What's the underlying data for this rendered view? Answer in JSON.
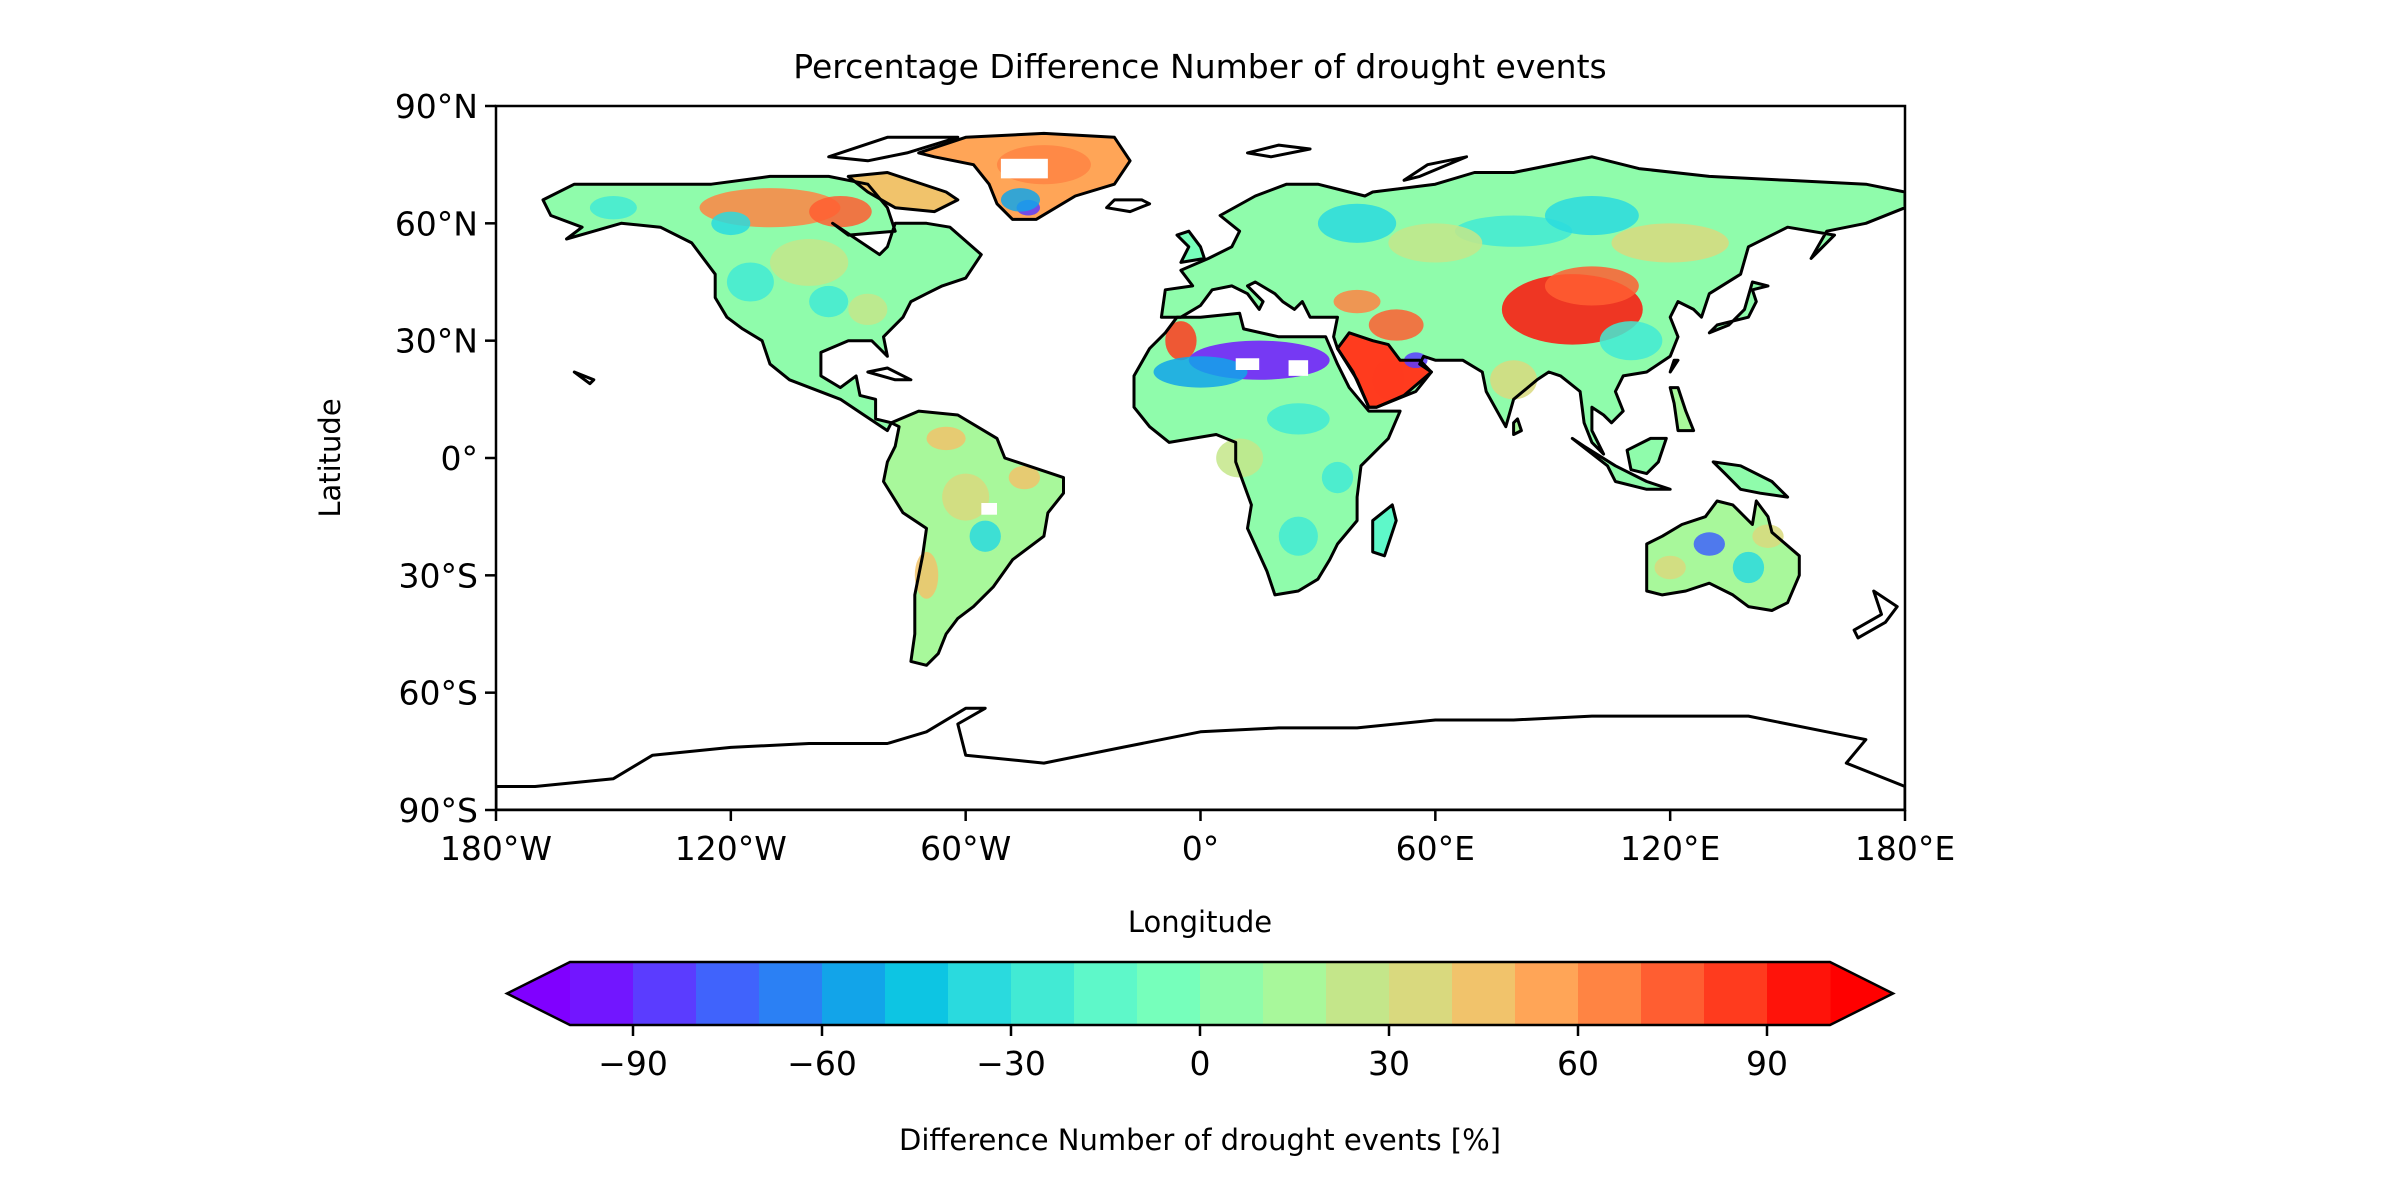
{
  "chart_data": {
    "type": "heatmap",
    "title": "Percentage Difference Number of drought events",
    "xlabel": "Longitude",
    "ylabel": "Latitude",
    "xlim": [
      -180,
      180
    ],
    "ylim": [
      -90,
      90
    ],
    "x_ticks": [
      {
        "value": -180,
        "label": "180°W"
      },
      {
        "value": -120,
        "label": "120°W"
      },
      {
        "value": -60,
        "label": "60°W"
      },
      {
        "value": 0,
        "label": "0°"
      },
      {
        "value": 60,
        "label": "60°E"
      },
      {
        "value": 120,
        "label": "120°E"
      },
      {
        "value": 180,
        "label": "180°E"
      }
    ],
    "y_ticks": [
      {
        "value": 90,
        "label": "90°N"
      },
      {
        "value": 60,
        "label": "60°N"
      },
      {
        "value": 30,
        "label": "30°N"
      },
      {
        "value": 0,
        "label": "0°"
      },
      {
        "value": -30,
        "label": "30°S"
      },
      {
        "value": -60,
        "label": "60°S"
      },
      {
        "value": -90,
        "label": "90°S"
      }
    ],
    "colorbar": {
      "label": "Difference Number of drought events [%]",
      "orientation": "horizontal",
      "extend": "both",
      "levels": [
        -100,
        -90,
        -80,
        -70,
        -60,
        -50,
        -40,
        -30,
        -20,
        -10,
        0,
        10,
        20,
        30,
        40,
        50,
        60,
        70,
        80,
        90,
        100
      ],
      "colors": [
        "#7216ff",
        "#5b3cff",
        "#4063fc",
        "#2b80f4",
        "#12a4e9",
        "#0dc5e3",
        "#2adade",
        "#42ead4",
        "#5ef8c9",
        "#76ffbb",
        "#8ffcab",
        "#a8f89b",
        "#c4e68a",
        "#d9d97e",
        "#f1c36b",
        "#ffa557",
        "#ff8443",
        "#ff5e31",
        "#ff3b1e",
        "#ff130a"
      ],
      "under_color": "#8000ff",
      "over_color": "#ff0000",
      "ticks": [
        {
          "value": -90,
          "label": "−90"
        },
        {
          "value": -60,
          "label": "−60"
        },
        {
          "value": -30,
          "label": "−30"
        },
        {
          "value": 0,
          "label": "0"
        },
        {
          "value": 30,
          "label": "30"
        },
        {
          "value": 60,
          "label": "60"
        },
        {
          "value": 90,
          "label": "90"
        }
      ]
    },
    "regions": [
      {
        "name": "North America",
        "typical_value": 5,
        "range": [
          -40,
          70
        ]
      },
      {
        "name": "Northern Canada",
        "value": 60
      },
      {
        "name": "Greenland",
        "value": 55
      },
      {
        "name": "South Greenland",
        "value": -90
      },
      {
        "name": "South America",
        "typical_value": 10,
        "range": [
          -50,
          60
        ]
      },
      {
        "name": "Europe and Russia",
        "typical_value": 0,
        "range": [
          -50,
          50
        ]
      },
      {
        "name": "Sahara",
        "value": -100
      },
      {
        "name": "Northwest Africa",
        "value": 70
      },
      {
        "name": "Arabian Peninsula",
        "value": 80
      },
      {
        "name": "Iran",
        "value": 70
      },
      {
        "name": "Central Asia / Tibet",
        "value": 90
      },
      {
        "name": "Sub-Saharan Africa",
        "typical_value": 0,
        "range": [
          -50,
          50
        ]
      },
      {
        "name": "South and East Asia",
        "typical_value": 5,
        "range": [
          -40,
          50
        ]
      },
      {
        "name": "Australia",
        "typical_value": 5,
        "range": [
          -80,
          50
        ]
      }
    ]
  }
}
